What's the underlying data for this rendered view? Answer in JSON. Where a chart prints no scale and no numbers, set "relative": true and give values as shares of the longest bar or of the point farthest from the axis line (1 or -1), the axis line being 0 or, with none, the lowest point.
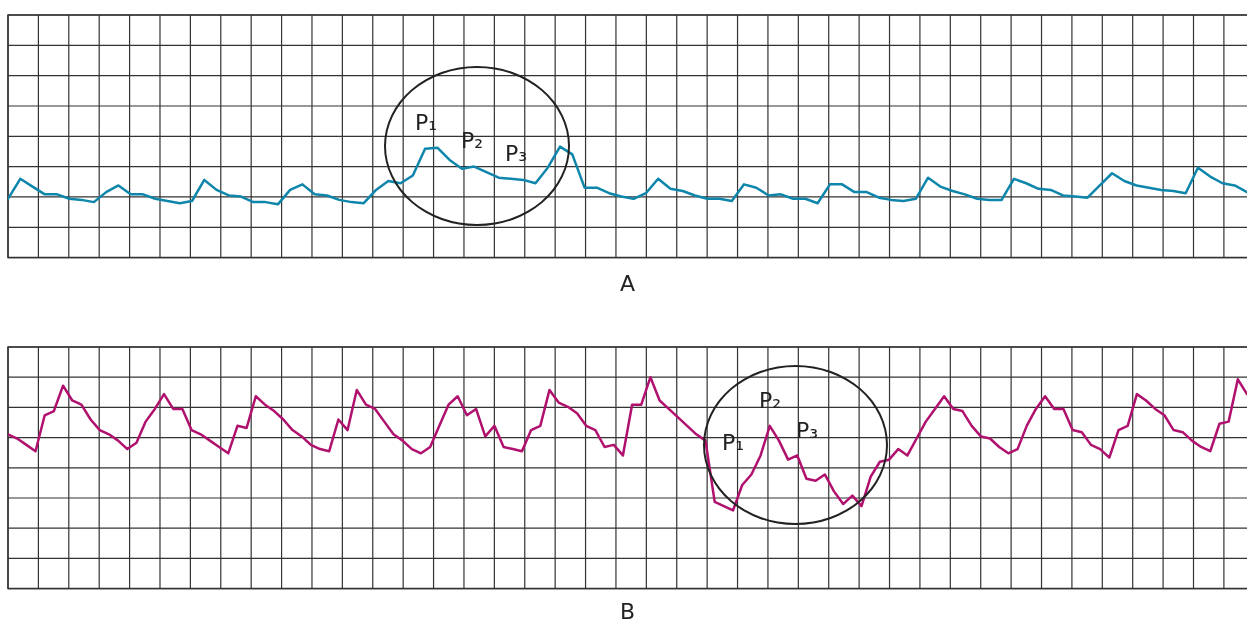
{
  "chart_data": [
    {
      "type": "line",
      "title": "A",
      "relative": true,
      "grid": true,
      "marker": "none",
      "categories": [
        null,
        null,
        null,
        null,
        null,
        null,
        null,
        null,
        null,
        null,
        null,
        null,
        null,
        null,
        null,
        null,
        null,
        null,
        null,
        null,
        null,
        null,
        null,
        null,
        null,
        null,
        null,
        null,
        null,
        null,
        null,
        null,
        null,
        null,
        null,
        null,
        null,
        null,
        null,
        null,
        null,
        null,
        null,
        null,
        null,
        null,
        null,
        null,
        null,
        null,
        null,
        null,
        null,
        null,
        null,
        null,
        null,
        null,
        null,
        null,
        null,
        null,
        null,
        null,
        null,
        null,
        null,
        null,
        null,
        null,
        null,
        null,
        null,
        null,
        null,
        null,
        null,
        null,
        null,
        null,
        null,
        null,
        null,
        null,
        null,
        null,
        null,
        null,
        null,
        null,
        null,
        null,
        null,
        null,
        null,
        null,
        null,
        null,
        null,
        null,
        null,
        null
      ],
      "series": [
        {
          "color": "#0e86ac",
          "values": [
            0.53,
            0.71,
            0.64,
            0.57,
            0.57,
            0.53,
            0.52,
            0.5,
            0.59,
            0.65,
            0.57,
            0.57,
            0.53,
            0.51,
            0.49,
            0.51,
            0.7,
            0.61,
            0.56,
            0.55,
            0.5,
            0.5,
            0.48,
            0.61,
            0.66,
            0.57,
            0.56,
            0.52,
            0.5,
            0.49,
            0.61,
            0.69,
            0.67,
            0.74,
            0.98,
            0.99,
            0.88,
            0.8,
            0.82,
            0.77,
            0.72,
            0.71,
            0.7,
            0.67,
            0.81,
            1.0,
            0.93,
            0.63,
            0.63,
            0.58,
            0.55,
            0.53,
            0.58,
            0.71,
            0.62,
            0.6,
            0.56,
            0.53,
            0.53,
            0.51,
            0.66,
            0.63,
            0.56,
            0.57,
            0.53,
            0.53,
            0.49,
            0.66,
            0.66,
            0.59,
            0.59,
            0.54,
            0.52,
            0.51,
            0.53,
            0.72,
            0.64,
            0.6,
            0.57,
            0.53,
            0.52,
            0.52,
            0.71,
            0.67,
            0.62,
            0.61,
            0.56,
            0.55,
            0.54,
            0.65,
            0.76,
            0.69,
            0.65,
            0.63,
            0.61,
            0.6,
            0.58,
            0.81,
            0.73,
            0.67,
            0.65,
            0.59
          ]
        }
      ],
      "annotations": [
        "P₁",
        "P₂",
        "P₃"
      ]
    },
    {
      "type": "line",
      "title": "B",
      "relative": true,
      "grid": true,
      "marker": "none",
      "categories": [
        null,
        null,
        null,
        null,
        null,
        null,
        null,
        null,
        null,
        null,
        null,
        null,
        null,
        null,
        null,
        null,
        null,
        null,
        null,
        null,
        null,
        null,
        null,
        null,
        null,
        null,
        null,
        null,
        null,
        null,
        null,
        null,
        null,
        null,
        null,
        null,
        null,
        null,
        null,
        null,
        null,
        null,
        null,
        null,
        null,
        null,
        null,
        null,
        null,
        null,
        null,
        null,
        null,
        null,
        null,
        null,
        null,
        null,
        null,
        null,
        null,
        null,
        null,
        null,
        null,
        null,
        null,
        null,
        null,
        null,
        null,
        null,
        null,
        null,
        null,
        null,
        null,
        null,
        null,
        null,
        null,
        null,
        null,
        null,
        null,
        null,
        null,
        null,
        null,
        null,
        null,
        null,
        null,
        null,
        null,
        null,
        null,
        null,
        null,
        null,
        null,
        null,
        null,
        null,
        null,
        null,
        null,
        null,
        null,
        null,
        null,
        null,
        null,
        null,
        null,
        null,
        null,
        null,
        null,
        null,
        null,
        null,
        null,
        null,
        null,
        null,
        null,
        null,
        null,
        null,
        null,
        null,
        null,
        null,
        null,
        null
      ],
      "series": [
        {
          "color": "#b0106e",
          "values": [
            0.73,
            0.71,
            0.68,
            0.65,
            0.82,
            0.84,
            0.96,
            0.89,
            0.87,
            0.8,
            0.75,
            0.73,
            0.7,
            0.66,
            0.69,
            0.79,
            0.85,
            0.92,
            0.85,
            0.85,
            0.75,
            0.73,
            0.7,
            0.67,
            0.64,
            0.77,
            0.76,
            0.91,
            0.87,
            0.84,
            0.8,
            0.75,
            0.72,
            0.68,
            0.66,
            0.65,
            0.8,
            0.75,
            0.94,
            0.87,
            0.85,
            0.79,
            0.73,
            0.7,
            0.66,
            0.64,
            0.67,
            0.77,
            0.87,
            0.91,
            0.82,
            0.85,
            0.72,
            0.77,
            0.67,
            0.66,
            0.65,
            0.75,
            0.77,
            0.94,
            0.88,
            0.86,
            0.83,
            0.77,
            0.75,
            0.67,
            0.68,
            0.63,
            0.87,
            0.87,
            1.0,
            0.89,
            0.85,
            0.81,
            0.77,
            0.73,
            0.7,
            0.41,
            0.39,
            0.37,
            0.49,
            0.54,
            0.63,
            0.77,
            0.7,
            0.61,
            0.63,
            0.52,
            0.51,
            0.54,
            0.46,
            0.4,
            0.44,
            0.39,
            0.53,
            0.6,
            0.61,
            0.66,
            0.63,
            0.71,
            0.79,
            0.85,
            0.91,
            0.85,
            0.84,
            0.77,
            0.72,
            0.71,
            0.67,
            0.64,
            0.66,
            0.77,
            0.85,
            0.91,
            0.85,
            0.85,
            0.75,
            0.74,
            0.68,
            0.66,
            0.62,
            0.75,
            0.77,
            0.92,
            0.89,
            0.85,
            0.82,
            0.75,
            0.74,
            0.7,
            0.67,
            0.65,
            0.78,
            0.79,
            0.99,
            0.92
          ]
        }
      ],
      "annotations": [
        "P₁",
        "P₂",
        "P₃"
      ]
    }
  ]
}
